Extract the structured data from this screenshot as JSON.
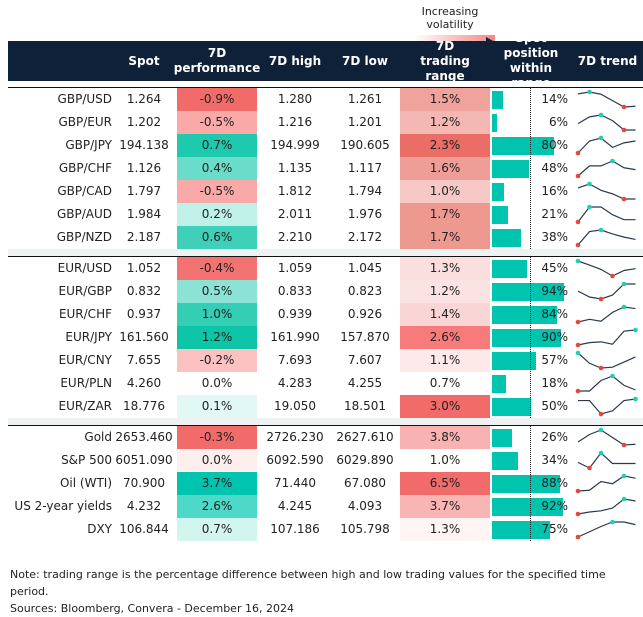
{
  "legend": {
    "label": "Increasing volatility"
  },
  "chart_data": {
    "type": "table",
    "columns": [
      "",
      "Spot",
      "7D performance",
      "7D high",
      "7D low",
      "7D trading range",
      "Spot position within range",
      "7D trend"
    ],
    "sections": [
      {
        "rows": [
          {
            "name": "GBP/USD",
            "spot": "1.264",
            "perf": "-0.9%",
            "perf_color": "#f26b6b",
            "high": "1.280",
            "low": "1.261",
            "range": "1.5%",
            "range_color": "#f0a39c",
            "position": 14,
            "position_label": "14%",
            "trend": [
              35,
              40,
              34,
              17,
              0,
              2
            ]
          },
          {
            "name": "GBP/EUR",
            "spot": "1.202",
            "perf": "-0.5%",
            "perf_color": "#f9a9a8",
            "high": "1.216",
            "low": "1.201",
            "range": "1.2%",
            "range_color": "#f3b8b3",
            "position": 6,
            "position_label": "6%",
            "trend": [
              17,
              35,
              40,
              25,
              0,
              0
            ]
          },
          {
            "name": "GBP/JPY",
            "spot": "194.138",
            "perf": "0.7%",
            "perf_color": "#1ec9ad",
            "high": "194.999",
            "low": "190.605",
            "range": "2.3%",
            "range_color": "#ea6e66",
            "position": 80,
            "position_label": "80%",
            "trend": [
              0,
              32,
              40,
              15,
              27,
              32
            ]
          },
          {
            "name": "GBP/CHF",
            "spot": "1.126",
            "perf": "0.4%",
            "perf_color": "#6adcc9",
            "high": "1.135",
            "low": "1.117",
            "range": "1.6%",
            "range_color": "#ef9e97",
            "position": 48,
            "position_label": "48%",
            "trend": [
              0,
              27,
              27,
              40,
              22,
              17
            ]
          },
          {
            "name": "GBP/CAD",
            "spot": "1.797",
            "perf": "-0.5%",
            "perf_color": "#f9a9a8",
            "high": "1.812",
            "low": "1.794",
            "range": "1.0%",
            "range_color": "#f6c9c6",
            "position": 16,
            "position_label": "16%",
            "trend": [
              28,
              38,
              22,
              13,
              0,
              0
            ]
          },
          {
            "name": "GBP/AUD",
            "spot": "1.984",
            "perf": "0.2%",
            "perf_color": "#c0f1e8",
            "high": "2.011",
            "low": "1.976",
            "range": "1.7%",
            "range_color": "#ee9990",
            "position": 21,
            "position_label": "21%",
            "trend": [
              0,
              39,
              39,
              19,
              6,
              6
            ]
          },
          {
            "name": "GBP/NZD",
            "spot": "2.187",
            "perf": "0.6%",
            "perf_color": "#3ed1b8",
            "high": "2.210",
            "low": "2.172",
            "range": "1.7%",
            "range_color": "#ee9990",
            "position": 38,
            "position_label": "38%",
            "trend": [
              0,
              34,
              38,
              28,
              20,
              14
            ]
          }
        ]
      },
      {
        "rows": [
          {
            "name": "EUR/USD",
            "spot": "1.052",
            "perf": "-0.4%",
            "perf_color": "#f37272",
            "high": "1.059",
            "low": "1.045",
            "range": "1.3%",
            "range_color": "#fbdede",
            "position": 45,
            "position_label": "45%",
            "trend": [
              41,
              30,
              18,
              0,
              15,
              20
            ]
          },
          {
            "name": "EUR/GBP",
            "spot": "0.832",
            "perf": "0.5%",
            "perf_color": "#8ae3d4",
            "high": "0.833",
            "low": "0.823",
            "range": "1.2%",
            "range_color": "#fce3e3",
            "position": 94,
            "position_label": "94%",
            "trend": [
              20,
              5,
              0,
              10,
              38,
              38
            ]
          },
          {
            "name": "EUR/CHF",
            "spot": "0.937",
            "perf": "1.0%",
            "perf_color": "#34ceb4",
            "high": "0.939",
            "low": "0.926",
            "range": "1.4%",
            "range_color": "#fad5d5",
            "position": 84,
            "position_label": "84%",
            "trend": [
              0,
              7,
              2,
              25,
              39,
              35
            ]
          },
          {
            "name": "EUR/JPY",
            "spot": "161.560",
            "perf": "1.2%",
            "perf_color": "#0fc5a8",
            "high": "161.990",
            "low": "157.870",
            "range": "2.6%",
            "range_color": "#f77b7b",
            "position": 90,
            "position_label": "90%",
            "trend": [
              0,
              6,
              8,
              2,
              35,
              38
            ]
          },
          {
            "name": "EUR/CNY",
            "spot": "7.655",
            "perf": "-0.2%",
            "perf_color": "#fbc2c1",
            "high": "7.693",
            "low": "7.607",
            "range": "1.1%",
            "range_color": "#fde9e9",
            "position": 57,
            "position_label": "57%",
            "trend": [
              38,
              12,
              0,
              2,
              15,
              28
            ]
          },
          {
            "name": "EUR/PLN",
            "spot": "4.260",
            "perf": "0.0%",
            "perf_color": "#ffffff",
            "high": "4.283",
            "low": "4.255",
            "range": "0.7%",
            "range_color": "#ffffff",
            "position": 18,
            "position_label": "18%",
            "trend": [
              0,
              0,
              28,
              40,
              15,
              3
            ]
          },
          {
            "name": "EUR/ZAR",
            "spot": "18.776",
            "perf": "0.1%",
            "perf_color": "#e2f8f4",
            "high": "19.050",
            "low": "18.501",
            "range": "3.0%",
            "range_color": "#f26b6b",
            "position": 50,
            "position_label": "50%",
            "trend": [
              34,
              34,
              0,
              8,
              34,
              38
            ]
          }
        ]
      },
      {
        "rows": [
          {
            "name": "Gold",
            "spot": "2653.460",
            "perf": "-0.3%",
            "perf_color": "#f26b6b",
            "high": "2726.230",
            "low": "2627.610",
            "range": "3.8%",
            "range_color": "#f9b2b2",
            "position": 26,
            "position_label": "26%",
            "trend": [
              8,
              28,
              40,
              20,
              0,
              2
            ]
          },
          {
            "name": "S&P 500",
            "spot": "6051.090",
            "perf": "0.0%",
            "perf_color": "#ffeeee",
            "high": "6092.590",
            "low": "6029.890",
            "range": "1.0%",
            "range_color": "#ffffff",
            "position": 34,
            "position_label": "34%",
            "trend": [
              15,
              0,
              40,
              12,
              12,
              12
            ]
          },
          {
            "name": "Oil (WTI)",
            "spot": "70.900",
            "perf": "3.7%",
            "perf_color": "#00c4ae",
            "high": "71.440",
            "low": "67.080",
            "range": "6.5%",
            "range_color": "#f26b6b",
            "position": 88,
            "position_label": "88%",
            "trend": [
              0,
              2,
              26,
              20,
              41,
              35
            ]
          },
          {
            "name": "US 2-year yields",
            "spot": "4.232",
            "perf": "2.6%",
            "perf_color": "#4dd8c7",
            "high": "4.245",
            "low": "4.093",
            "range": "3.7%",
            "range_color": "#f9b4b4",
            "position": 92,
            "position_label": "92%",
            "trend": [
              0,
              5,
              8,
              15,
              38,
              33
            ]
          },
          {
            "name": "DXY",
            "spot": "106.844",
            "perf": "0.7%",
            "perf_color": "#d2f5f0",
            "high": "107.186",
            "low": "105.798",
            "range": "1.3%",
            "range_color": "#fff5f5",
            "position": 75,
            "position_label": "75%",
            "trend": [
              0,
              14,
              28,
              40,
              40,
              33
            ]
          }
        ]
      }
    ],
    "colors": {
      "header": "#0f2138",
      "bar": "#00c4ae",
      "trend_line": "#2a3a4a",
      "trend_max": "#1fcfb5",
      "trend_min": "#e8443a"
    }
  },
  "notes": {
    "note": "Note: trading range is the percentage difference between high and low trading values for the specified time period.",
    "sources": "Sources: Bloomberg, Convera - December 16, 2024"
  }
}
